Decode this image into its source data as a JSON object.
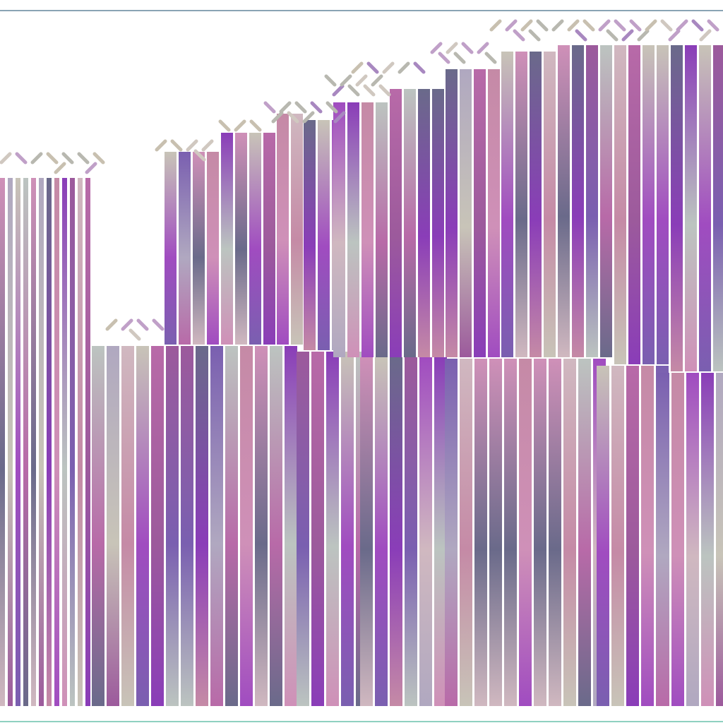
{
  "colors": {
    "background": "#ffffff",
    "top_rule": "#8aa4b4",
    "bottom_rule": "#8fd0c0",
    "bar_palette": [
      "#8a3db8",
      "#a04cc0",
      "#b86aa8",
      "#c58aa6",
      "#7a5fb0",
      "#6a6a8a",
      "#c8c4b8",
      "#bcc4c0",
      "#d0b8c0",
      "#9c5a9c",
      "#cf90b8",
      "#b0a8c0"
    ],
    "glyph_palette": [
      "#c8c0b0",
      "#c0a0c8",
      "#b8b8b0",
      "#d0c8c0",
      "#a888c0"
    ]
  },
  "icons": {
    "glyph": "x-mark-glyph"
  }
}
